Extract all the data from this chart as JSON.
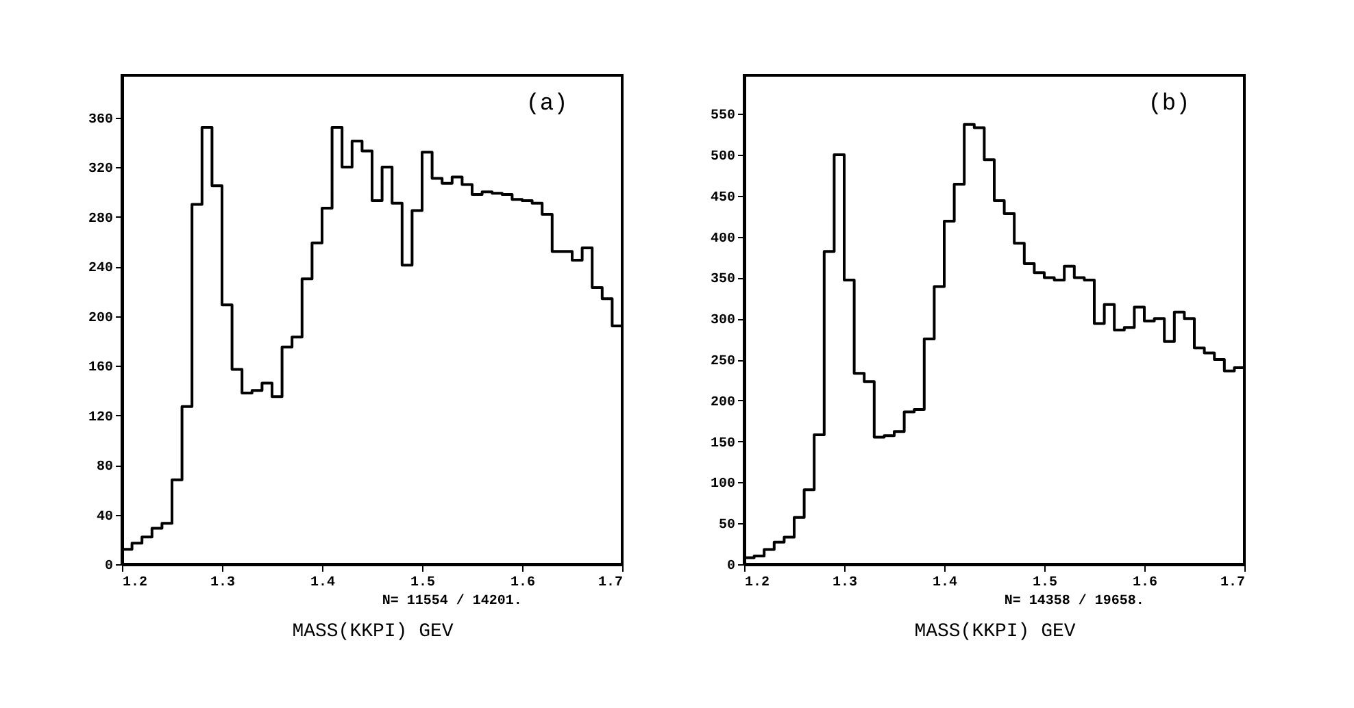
{
  "chart_data": [
    {
      "type": "histogram",
      "xlabel": "MASS(KKPI) GEV",
      "annotations": [
        "(a)",
        "N= 11554 / 14201."
      ],
      "bins": [
        1.2,
        1.21,
        1.22,
        1.23,
        1.24,
        1.25,
        1.26,
        1.27,
        1.28,
        1.29,
        1.3,
        1.31,
        1.32,
        1.33,
        1.34,
        1.35,
        1.36,
        1.37,
        1.38,
        1.39,
        1.4,
        1.41,
        1.42,
        1.43,
        1.44,
        1.45,
        1.46,
        1.47,
        1.48,
        1.49,
        1.5,
        1.51,
        1.52,
        1.53,
        1.54,
        1.55,
        1.56,
        1.57,
        1.58,
        1.59,
        1.6,
        1.61,
        1.62,
        1.63,
        1.64,
        1.65,
        1.66,
        1.67,
        1.68,
        1.69,
        1.7
      ],
      "values": [
        12,
        17,
        22,
        29,
        33,
        68,
        127,
        290,
        352,
        305,
        209,
        157,
        138,
        140,
        146,
        135,
        175,
        183,
        230,
        259,
        287,
        352,
        320,
        341,
        333,
        293,
        320,
        291,
        241,
        285,
        332,
        311,
        307,
        312,
        306,
        298,
        300,
        299,
        298,
        294,
        293,
        291,
        282,
        252,
        252,
        245,
        255,
        223,
        214,
        192
      ],
      "color": "#000000",
      "xlim": [
        1.2,
        1.7
      ],
      "ylim": [
        0,
        394
      ],
      "xticks": [
        1.2,
        1.3,
        1.4,
        1.5,
        1.6,
        1.7
      ],
      "yticks": [
        0,
        40,
        80,
        120,
        160,
        200,
        240,
        280,
        320,
        360
      ],
      "grid": false
    },
    {
      "type": "histogram",
      "xlabel": "MASS(KKPI) GEV",
      "annotations": [
        "(b)",
        "N= 14358 / 19658."
      ],
      "bins": [
        1.2,
        1.21,
        1.22,
        1.23,
        1.24,
        1.25,
        1.26,
        1.27,
        1.28,
        1.29,
        1.3,
        1.31,
        1.32,
        1.33,
        1.34,
        1.35,
        1.36,
        1.37,
        1.38,
        1.39,
        1.4,
        1.41,
        1.42,
        1.43,
        1.44,
        1.45,
        1.46,
        1.47,
        1.48,
        1.49,
        1.5,
        1.51,
        1.52,
        1.53,
        1.54,
        1.55,
        1.56,
        1.57,
        1.58,
        1.59,
        1.6,
        1.61,
        1.62,
        1.63,
        1.64,
        1.65,
        1.66,
        1.67,
        1.68,
        1.69,
        1.7
      ],
      "values": [
        8,
        10,
        18,
        27,
        33,
        57,
        91,
        158,
        382,
        500,
        347,
        233,
        223,
        155,
        157,
        162,
        186,
        189,
        275,
        339,
        419,
        464,
        537,
        533,
        494,
        444,
        428,
        392,
        367,
        356,
        350,
        347,
        364,
        350,
        347,
        294,
        317,
        286,
        289,
        314,
        297,
        300,
        272,
        308,
        300,
        264,
        258,
        250,
        236,
        240
      ],
      "color": "#000000",
      "xlim": [
        1.2,
        1.7
      ],
      "ylim": [
        0,
        597
      ],
      "xticks": [
        1.2,
        1.3,
        1.4,
        1.5,
        1.6,
        1.7
      ],
      "yticks": [
        0,
        50,
        100,
        150,
        200,
        250,
        300,
        350,
        400,
        450,
        500,
        550
      ],
      "grid": false
    }
  ]
}
